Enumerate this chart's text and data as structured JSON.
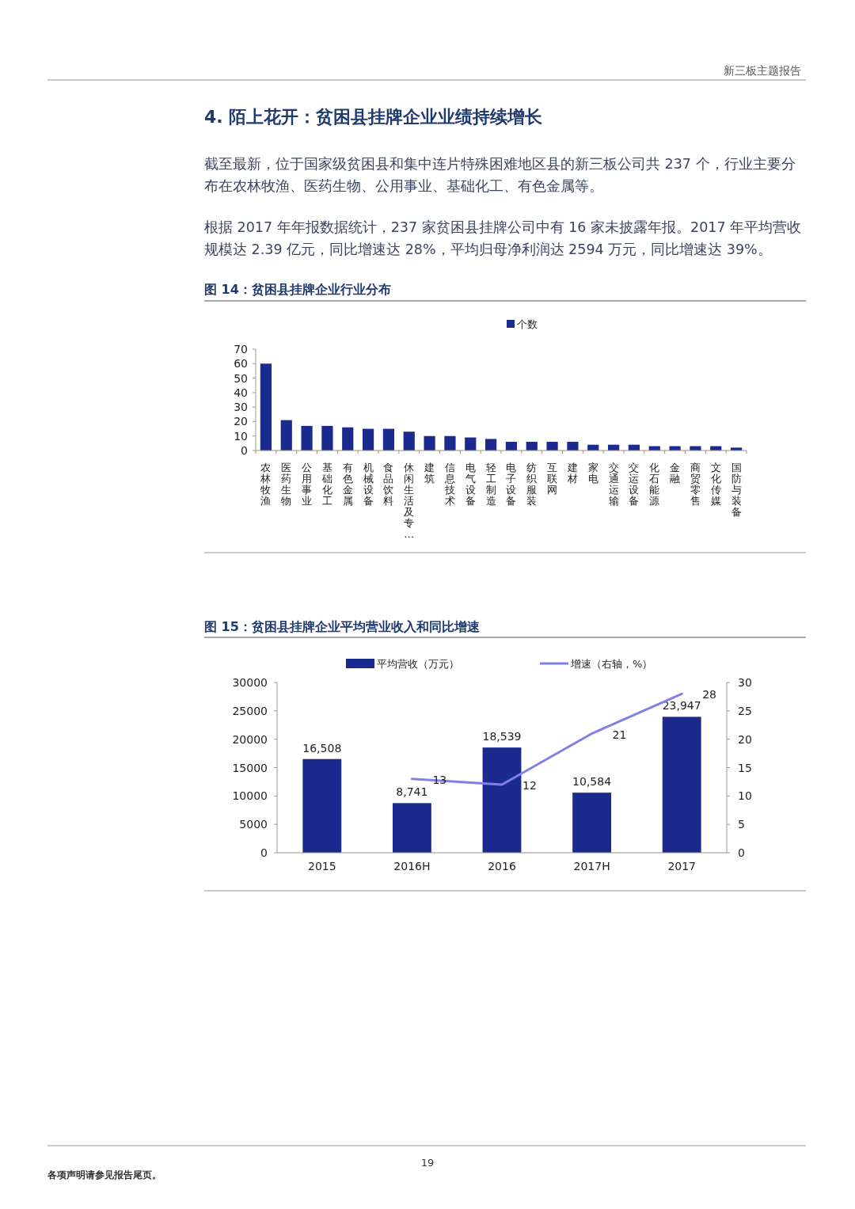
{
  "chart_data": [
    {
      "type": "bar",
      "title": "图 14：贫困县挂牌企业行业分布",
      "categories": [
        "农林牧渔",
        "医药生物",
        "公用事业",
        "基础化工",
        "有色金属",
        "机械设备",
        "食品饮料",
        "休闲生活及专…",
        "建筑",
        "信息技术",
        "电气设备",
        "轻工制造",
        "电子设备",
        "纺织服装",
        "互联网",
        "建材",
        "家电",
        "交通运输",
        "交运设备",
        "化石能源",
        "金融",
        "商贸零售",
        "文化传媒",
        "国防与装备"
      ],
      "series": [
        {
          "name": "个数",
          "color": "#1b2a8f",
          "values": [
            60,
            21,
            17,
            17,
            16,
            15,
            15,
            13,
            10,
            10,
            9,
            8,
            6,
            6,
            6,
            6,
            4,
            4,
            4,
            3,
            3,
            3,
            3,
            2
          ]
        }
      ],
      "ylim": [
        0,
        70
      ],
      "yticks": [
        0,
        10,
        20,
        30,
        40,
        50,
        60,
        70
      ],
      "legend": "top",
      "annotations": [
        "新三板主题报告",
        "4. 陌上花开：贫困县挂牌企业业绩持续增长",
        "截至最新，位于国家级贫困县和集中连片特殊困难地区县的新三板公司共 237 个，行业主要分布在农林牧渔、医药生物、公用事业、基础化工、有色金属等。",
        "根据 2017 年年报数据统计，237 家贫困县挂牌公司中有 16 家未披露年报。2017 年平均营收规模达 2.39 亿元，同比增速达 28%，平均归母净利润达 2594 万元，同比增速达 39%。"
      ]
    },
    {
      "type": "bar",
      "title": "图 15：贫困县挂牌企业平均营业收入和同比增速",
      "categories": [
        "2015",
        "2016H",
        "2016",
        "2017H",
        "2017"
      ],
      "series": [
        {
          "name": "平均营收（万元）",
          "color": "#1b2a8f",
          "values": [
            16508,
            8741,
            18539,
            10584,
            23947
          ],
          "value_labels": [
            "16,508",
            "8,741",
            "18,539",
            "10,584",
            "23,947"
          ]
        },
        {
          "name": "增速（右轴，%）",
          "type": "line",
          "axis": "y2",
          "color": "#8080e6",
          "values": [
            null,
            13,
            12,
            21,
            28
          ],
          "value_labels": [
            null,
            "13",
            "12",
            "21",
            "28"
          ]
        }
      ],
      "ylim": [
        0,
        30000
      ],
      "yticks": [
        0,
        5000,
        10000,
        15000,
        20000,
        25000,
        30000
      ],
      "y2lim": [
        0,
        30
      ],
      "y2ticks": [
        0,
        5,
        10,
        15,
        20,
        25,
        30
      ],
      "legend": "top",
      "annotations": [
        "各项声明请参见报告尾页。",
        "19"
      ]
    }
  ]
}
